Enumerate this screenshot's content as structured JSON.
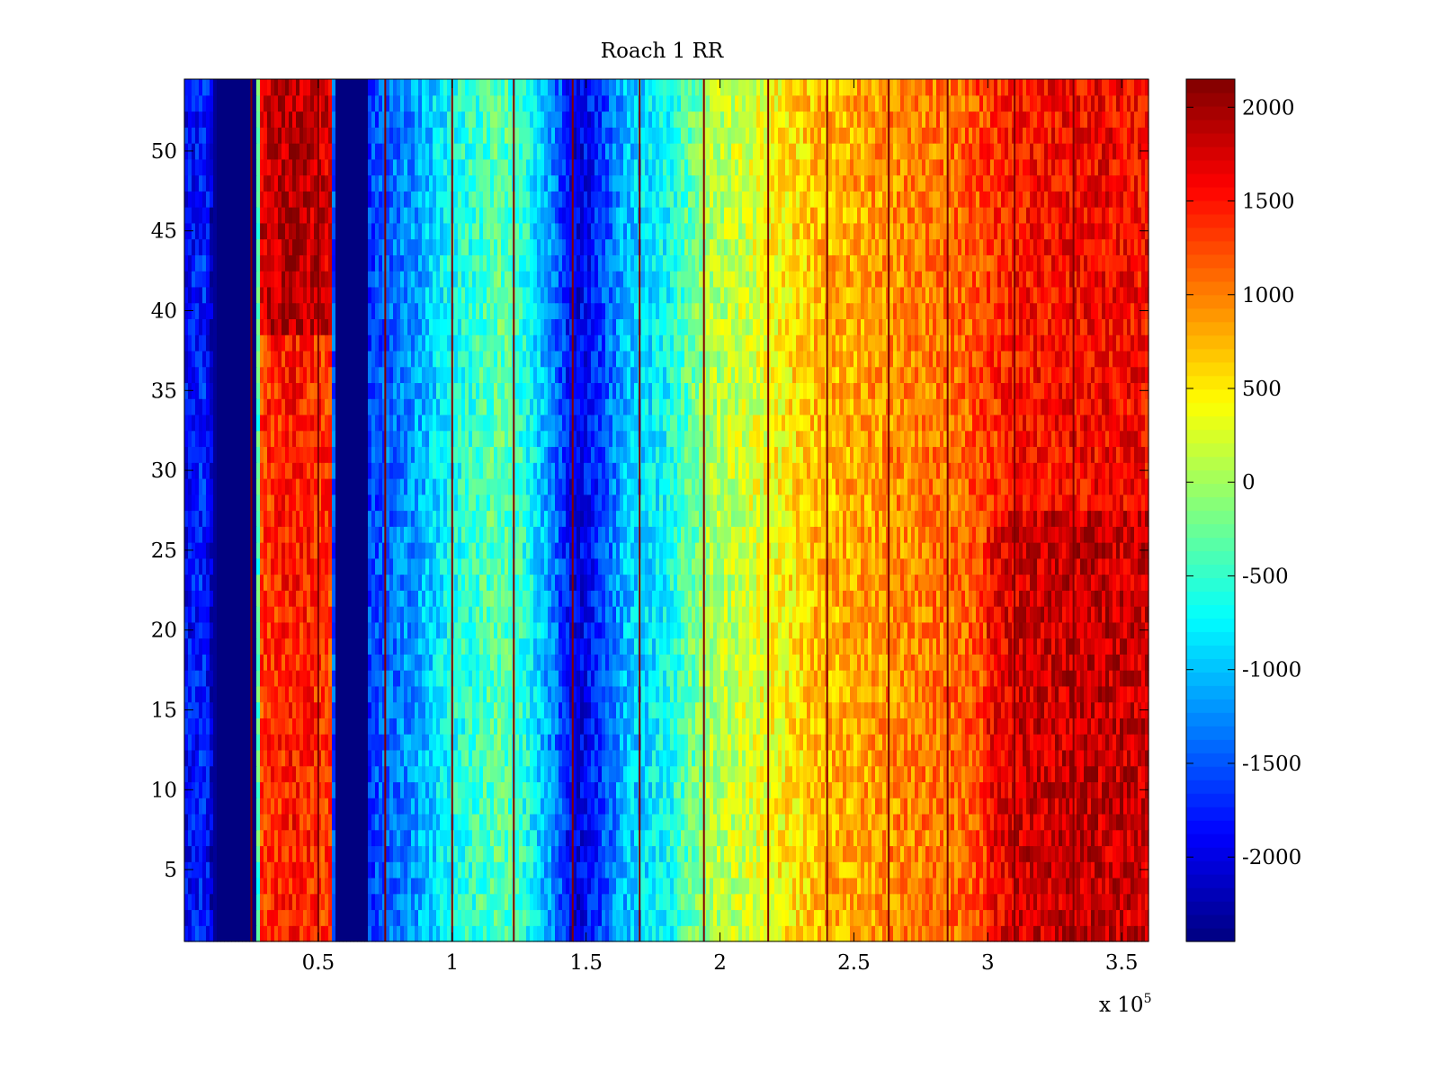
{
  "chart_data": {
    "type": "heatmap",
    "title": "Roach 1 RR",
    "xlabel": "",
    "ylabel": "",
    "x_range": [
      0,
      360000
    ],
    "y_range": [
      0.5,
      54.5
    ],
    "x_ticks": [
      50000,
      100000,
      150000,
      200000,
      250000,
      300000,
      350000
    ],
    "x_tick_labels": [
      "0.5",
      "1",
      "1.5",
      "2",
      "2.5",
      "3",
      "3.5"
    ],
    "x_exponent_label": {
      "base": "x 10",
      "exponent": "5"
    },
    "y_ticks": [
      5,
      10,
      15,
      20,
      25,
      30,
      35,
      40,
      45,
      50
    ],
    "y_tick_labels": [
      "5",
      "10",
      "15",
      "20",
      "25",
      "30",
      "35",
      "40",
      "45",
      "50"
    ],
    "rows": 54,
    "colormap": "jet",
    "colorbar": {
      "range": [
        -2450,
        2150
      ],
      "ticks": [
        2000,
        1500,
        1000,
        500,
        0,
        -500,
        -1000,
        -1500,
        -2000
      ],
      "tick_labels": [
        "2000",
        "1500",
        "1000",
        "500",
        "0",
        "-500",
        "-1000",
        "-1500",
        "-2000"
      ]
    },
    "column_profile": [
      {
        "x": 0,
        "value": -1900
      },
      {
        "x": 8000,
        "value": -1700
      },
      {
        "x": 12000,
        "value": -2450
      },
      {
        "x": 27000,
        "value": -2450
      },
      {
        "x": 28000,
        "value": 1300
      },
      {
        "x": 40000,
        "value": 1500
      },
      {
        "x": 55000,
        "value": 1300
      },
      {
        "x": 56000,
        "value": -2450
      },
      {
        "x": 68000,
        "value": -2450
      },
      {
        "x": 69000,
        "value": -1600
      },
      {
        "x": 85000,
        "value": -1200
      },
      {
        "x": 100000,
        "value": -650
      },
      {
        "x": 118000,
        "value": -300
      },
      {
        "x": 128000,
        "value": -600
      },
      {
        "x": 138000,
        "value": -1300
      },
      {
        "x": 146000,
        "value": -2050
      },
      {
        "x": 154000,
        "value": -1700
      },
      {
        "x": 165000,
        "value": -1000
      },
      {
        "x": 180000,
        "value": -700
      },
      {
        "x": 195000,
        "value": 0
      },
      {
        "x": 215000,
        "value": 300
      },
      {
        "x": 235000,
        "value": 700
      },
      {
        "x": 260000,
        "value": 900
      },
      {
        "x": 290000,
        "value": 1100
      },
      {
        "x": 310000,
        "value": 1500
      },
      {
        "x": 340000,
        "value": 1600
      },
      {
        "x": 360000,
        "value": 1550
      }
    ],
    "row_trend": {
      "note_rows_top_red_left_band": true
    },
    "dark_vertical_lines_x": [
      25000,
      50000,
      75000,
      100000,
      123000,
      145000,
      170000,
      194000,
      218000,
      240000,
      263000,
      285000,
      310000,
      332000
    ]
  }
}
